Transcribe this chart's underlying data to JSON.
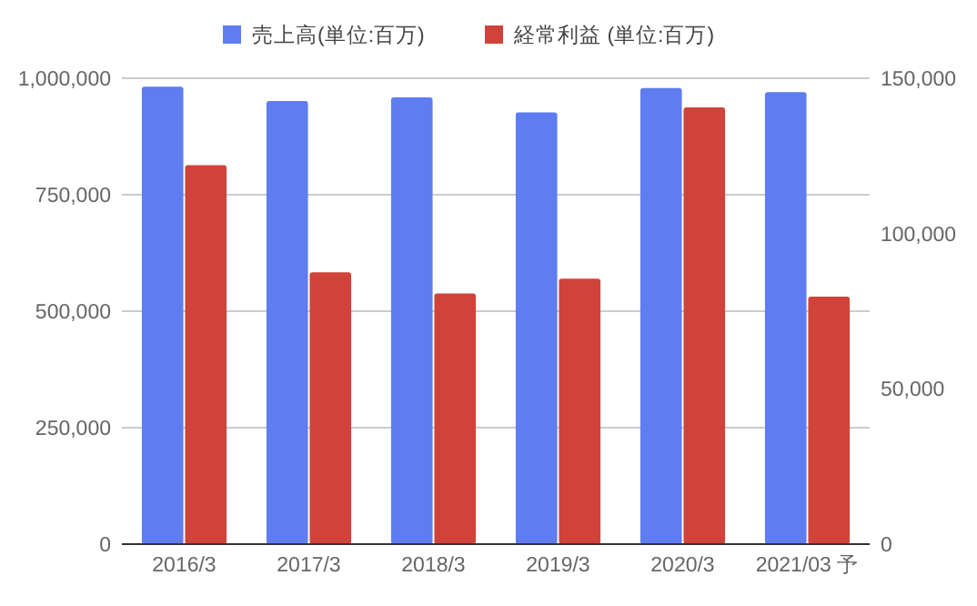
{
  "chart_data": {
    "type": "bar",
    "categories": [
      "2016/3",
      "2017/3",
      "2018/3",
      "2019/3",
      "2020/3",
      "2021/03 予"
    ],
    "series": [
      {
        "name": "売上高(単位:百万)",
        "color": "#5f7cf0",
        "values": [
          982000,
          951000,
          959000,
          927000,
          979000,
          970000
        ]
      },
      {
        "name": "経常利益 (単位:百万)",
        "color": "#d0433a",
        "values": [
          122000,
          87500,
          80700,
          85500,
          140600,
          79700
        ],
        "axis": "y2"
      }
    ],
    "ylim": [
      0,
      1000000
    ],
    "yticks": [
      {
        "value": 0,
        "label": "0"
      },
      {
        "value": 250000,
        "label": "250,000"
      },
      {
        "value": 500000,
        "label": "500,000"
      },
      {
        "value": 750000,
        "label": "750,000"
      },
      {
        "value": 1000000,
        "label": "1,000,000"
      }
    ],
    "y2lim": [
      0,
      150000
    ],
    "y2ticks": [
      {
        "value": 0,
        "label": "0"
      },
      {
        "value": 50000,
        "label": "50,000"
      },
      {
        "value": 100000,
        "label": "100,000"
      },
      {
        "value": 150000,
        "label": "150,000"
      }
    ],
    "grid": "y",
    "legend": "top"
  }
}
